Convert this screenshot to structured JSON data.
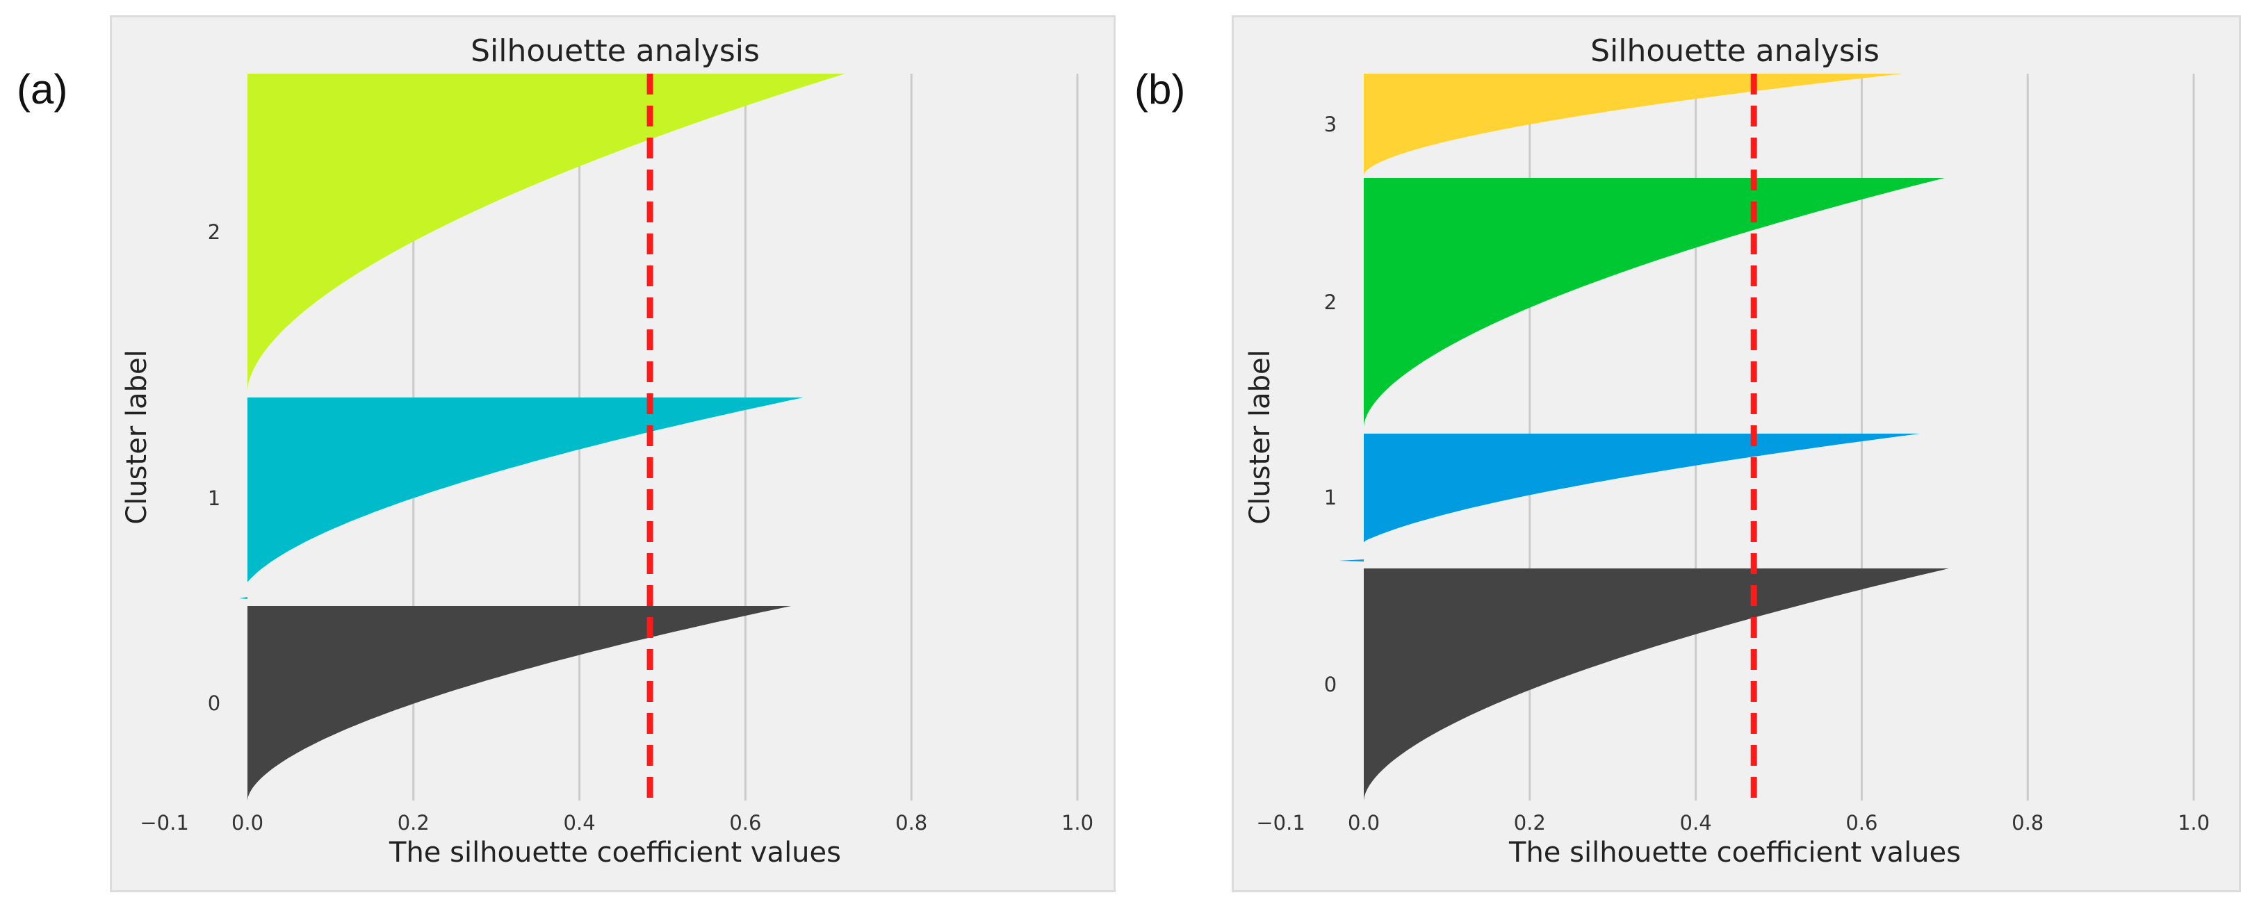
{
  "panels": [
    {
      "label": "(a)"
    },
    {
      "label": "(b)"
    }
  ],
  "chart_data": [
    {
      "type": "area",
      "title": "Silhouette analysis",
      "xlabel": "The silhouette coefficient values",
      "ylabel": "Cluster label",
      "xlim": [
        -0.1,
        1.0
      ],
      "xticks": [
        -0.1,
        0.0,
        0.2,
        0.4,
        0.6,
        0.8,
        1.0
      ],
      "xtick_labels": [
        "−0.1",
        "0.0",
        "0.2",
        "0.4",
        "0.6",
        "0.8",
        "1.0"
      ],
      "average_silhouette": 0.485,
      "clusters": [
        {
          "label": "0",
          "color": "#444444",
          "max": 0.655,
          "min": 0.0
        },
        {
          "label": "1",
          "color": "#00bccb",
          "max": 0.67,
          "min": -0.01
        },
        {
          "label": "2",
          "color": "#c6f424",
          "max": 0.72,
          "min": 0.0
        }
      ]
    },
    {
      "type": "area",
      "title": "Silhouette analysis",
      "xlabel": "The silhouette coefficient values",
      "ylabel": "Cluster label",
      "xlim": [
        -0.1,
        1.0
      ],
      "xticks": [
        -0.1,
        0.0,
        0.2,
        0.4,
        0.6,
        0.8,
        1.0
      ],
      "xtick_labels": [
        "−0.1",
        "0.0",
        "0.2",
        "0.4",
        "0.6",
        "0.8",
        "1.0"
      ],
      "average_silhouette": 0.47,
      "clusters": [
        {
          "label": "0",
          "color": "#444444",
          "max": 0.705,
          "min": 0.0
        },
        {
          "label": "1",
          "color": "#009be0",
          "max": 0.67,
          "min": -0.03
        },
        {
          "label": "2",
          "color": "#00c832",
          "max": 0.7,
          "min": 0.0
        },
        {
          "label": "3",
          "color": "#ffd333",
          "max": 0.65,
          "min": 0.0
        }
      ]
    }
  ]
}
